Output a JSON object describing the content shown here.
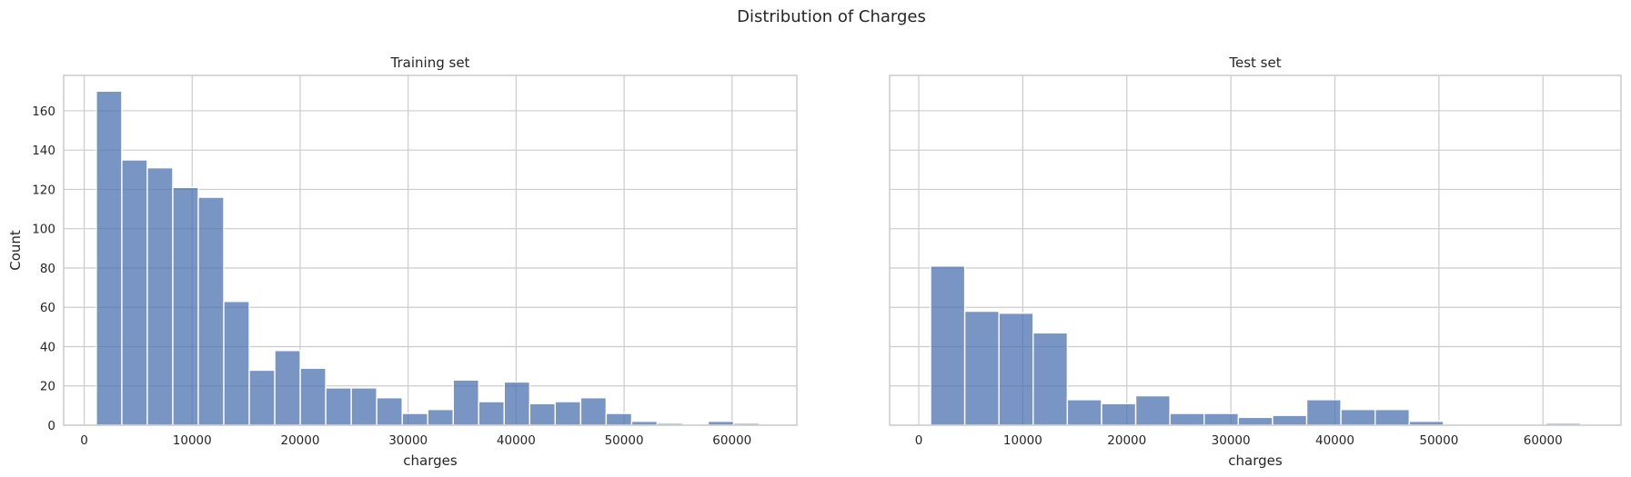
{
  "figure": {
    "suptitle": "Distribution of Charges"
  },
  "chart_data": [
    {
      "type": "bar",
      "subtype": "histogram",
      "title": "Training set",
      "xlabel": "charges",
      "ylabel": "Count",
      "xlim": [
        -1900,
        66000
      ],
      "ylim": [
        0,
        178
      ],
      "xticks": [
        0,
        10000,
        20000,
        30000,
        40000,
        50000,
        60000
      ],
      "xtick_labels": [
        "0",
        "10000",
        "20000",
        "30000",
        "40000",
        "50000",
        "60000"
      ],
      "yticks": [
        0,
        20,
        40,
        60,
        80,
        100,
        120,
        140,
        160
      ],
      "ytick_labels": [
        "0",
        "20",
        "40",
        "60",
        "80",
        "100",
        "120",
        "140",
        "160"
      ],
      "grid": true,
      "color": "#4c72b0",
      "bin_start": 1122,
      "bin_width": 2361,
      "counts": [
        170,
        135,
        131,
        121,
        116,
        63,
        28,
        38,
        29,
        19,
        19,
        14,
        6,
        8,
        23,
        12,
        22,
        11,
        12,
        14,
        6,
        2,
        1,
        0,
        2,
        1
      ]
    },
    {
      "type": "bar",
      "subtype": "histogram",
      "title": "Test set",
      "xlabel": "charges",
      "ylabel": "",
      "xlim": [
        -2800,
        67500
      ],
      "ylim": [
        0,
        178
      ],
      "xticks": [
        0,
        10000,
        20000,
        30000,
        40000,
        50000,
        60000
      ],
      "xtick_labels": [
        "0",
        "10000",
        "20000",
        "30000",
        "40000",
        "50000",
        "60000"
      ],
      "yticks": [
        0,
        20,
        40,
        60,
        80,
        100,
        120,
        140,
        160
      ],
      "grid": true,
      "color": "#4c72b0",
      "bin_start": 1135,
      "bin_width": 3287,
      "counts": [
        81,
        58,
        57,
        47,
        13,
        11,
        15,
        6,
        6,
        4,
        5,
        13,
        8,
        8,
        2,
        0,
        0,
        0,
        1
      ]
    }
  ]
}
